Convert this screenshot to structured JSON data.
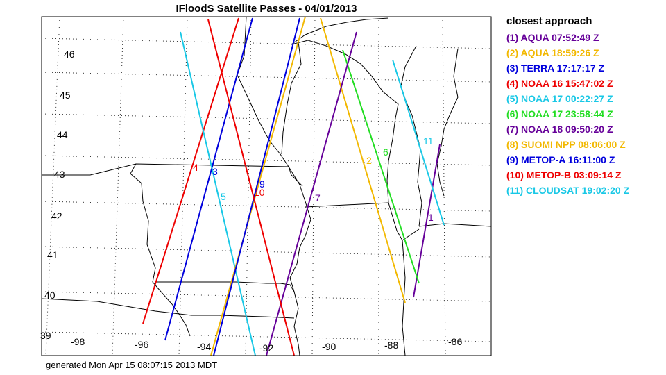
{
  "title": "IFloodS Satellite Passes - 04/01/2013",
  "legend_title": "closest approach",
  "footer": "generated Mon Apr 15 08:07:15 2013 MDT",
  "lat_labels": [
    "46",
    "45",
    "44",
    "43",
    "42",
    "41",
    "40",
    "39"
  ],
  "lon_labels": [
    "-98",
    "-96",
    "-94",
    "-92",
    "-90",
    "-88",
    "-86"
  ],
  "passes": [
    {
      "id": "1",
      "legend": "(1) AQUA 07:52:49 Z",
      "color": "#660099"
    },
    {
      "id": "2",
      "legend": "(2) AQUA 18:59:26 Z",
      "color": "#f2b800"
    },
    {
      "id": "3",
      "legend": "(3) TERRA 17:17:17 Z",
      "color": "#0000dd"
    },
    {
      "id": "4",
      "legend": "(4) NOAA 16 15:47:02 Z",
      "color": "#ee0000"
    },
    {
      "id": "5",
      "legend": "(5) NOAA 17 00:22:27 Z",
      "color": "#19c8e6"
    },
    {
      "id": "6",
      "legend": "(6) NOAA 17 23:58:44 Z",
      "color": "#22dd22"
    },
    {
      "id": "7",
      "legend": "(7) NOAA 18 09:50:20 Z",
      "color": "#660099"
    },
    {
      "id": "8",
      "legend": "(8) SUOMI NPP 08:06:00 Z",
      "color": "#f2b800"
    },
    {
      "id": "9",
      "legend": "(9) METOP-A 16:11:00 Z",
      "color": "#0000dd"
    },
    {
      "id": "10",
      "legend": "(10) METOP-B 03:09:14 Z",
      "color": "#ee0000"
    },
    {
      "id": "11",
      "legend": "(11) CLOUDSAT 19:02:20 Z",
      "color": "#19c8e6"
    }
  ]
}
